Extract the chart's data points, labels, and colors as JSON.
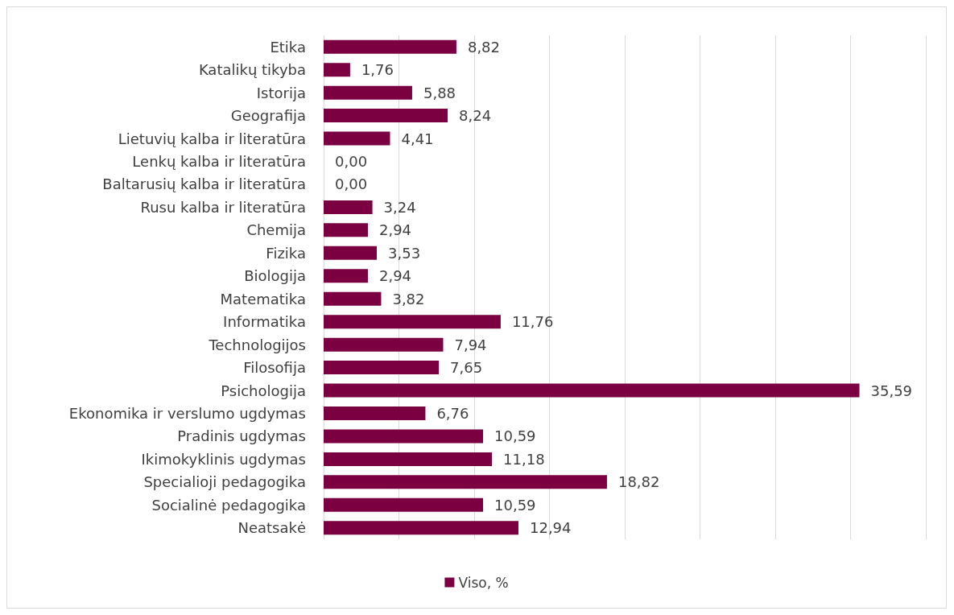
{
  "chart_data": {
    "type": "bar",
    "orientation": "horizontal",
    "categories": [
      "Etika",
      "Katalikų tikyba",
      "Istorija",
      "Geografija",
      "Lietuvių kalba ir literatūra",
      "Lenkų kalba ir literatūra",
      "Baltarusių kalba ir literatūra",
      "Rusu kalba ir literatūra",
      "Chemija",
      "Fizika",
      "Biologija",
      "Matematika",
      "Informatika",
      "Technologijos",
      "Filosofija",
      "Psichologija",
      "Ekonomika ir verslumo ugdymas",
      "Pradinis ugdymas",
      "Ikimokyklinis ugdymas",
      "Specialioji pedagogika",
      "Socialinė pedagogika",
      "Neatsakė"
    ],
    "series": [
      {
        "name": "Viso, %",
        "color": "#7b0041",
        "values": [
          8.82,
          1.76,
          5.88,
          8.24,
          4.41,
          0,
          0,
          3.24,
          2.94,
          3.53,
          2.94,
          3.82,
          11.76,
          7.94,
          7.65,
          35.59,
          6.76,
          10.59,
          11.18,
          18.82,
          10.59,
          12.94
        ],
        "value_labels": [
          "8,82",
          "1,76",
          "5,88",
          "8,24",
          "4,41",
          "0,00",
          "0,00",
          "3,24",
          "2,94",
          "3,53",
          "2,94",
          "3,82",
          "11,76",
          "7,94",
          "7,65",
          "35,59",
          "6,76",
          "10,59",
          "11,18",
          "18,82",
          "10,59",
          "12,94"
        ]
      }
    ],
    "xlim": [
      0,
      40
    ],
    "xticks": [
      {
        "value": 0,
        "label": null
      },
      {
        "value": 5,
        "label": null
      },
      {
        "value": 10,
        "label": null
      },
      {
        "value": 15,
        "label": null
      },
      {
        "value": 20,
        "label": null
      },
      {
        "value": 25,
        "label": null
      },
      {
        "value": 30,
        "label": null
      },
      {
        "value": 35,
        "label": null
      },
      {
        "value": 40,
        "label": null
      }
    ],
    "tick_labels": "y",
    "grid": "x",
    "legend": "bottom"
  }
}
